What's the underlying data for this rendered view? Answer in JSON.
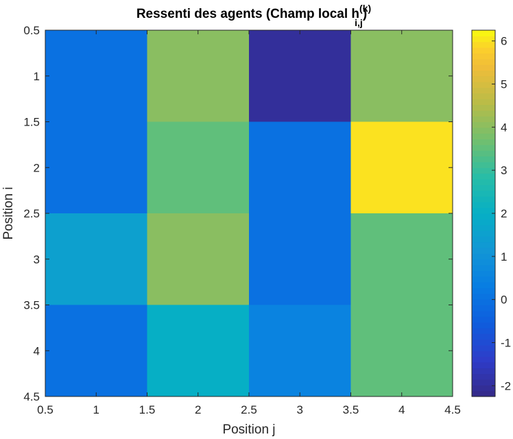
{
  "chart_data": {
    "type": "heatmap",
    "title": "Ressenti des agents (Champ local h",
    "title_superscript": "(k)",
    "title_subscript": "i,j",
    "title_suffix": ")",
    "xlabel": "Position j",
    "ylabel": "Position i",
    "x_ticks": [
      "0.5",
      "1",
      "1.5",
      "2",
      "2.5",
      "3",
      "3.5",
      "4",
      "4.5"
    ],
    "y_ticks": [
      "0.5",
      "1",
      "1.5",
      "2",
      "2.5",
      "3",
      "3.5",
      "4",
      "4.5"
    ],
    "xlim": [
      0.5,
      4.5
    ],
    "ylim": [
      0.5,
      4.5
    ],
    "y_direction": "reversed",
    "values": [
      [
        0,
        4,
        -2,
        4
      ],
      [
        0,
        3.5,
        0,
        6
      ],
      [
        1.5,
        4,
        0,
        3.5
      ],
      [
        0,
        2,
        0.5,
        3.5
      ]
    ],
    "color_limits": [
      -2.25,
      6.25
    ],
    "colormap": "parula",
    "colorbar": {
      "ticks": [
        "-2",
        "-1",
        "0",
        "1",
        "2",
        "3",
        "4",
        "5",
        "6"
      ],
      "placement": "right"
    },
    "grid": false
  }
}
